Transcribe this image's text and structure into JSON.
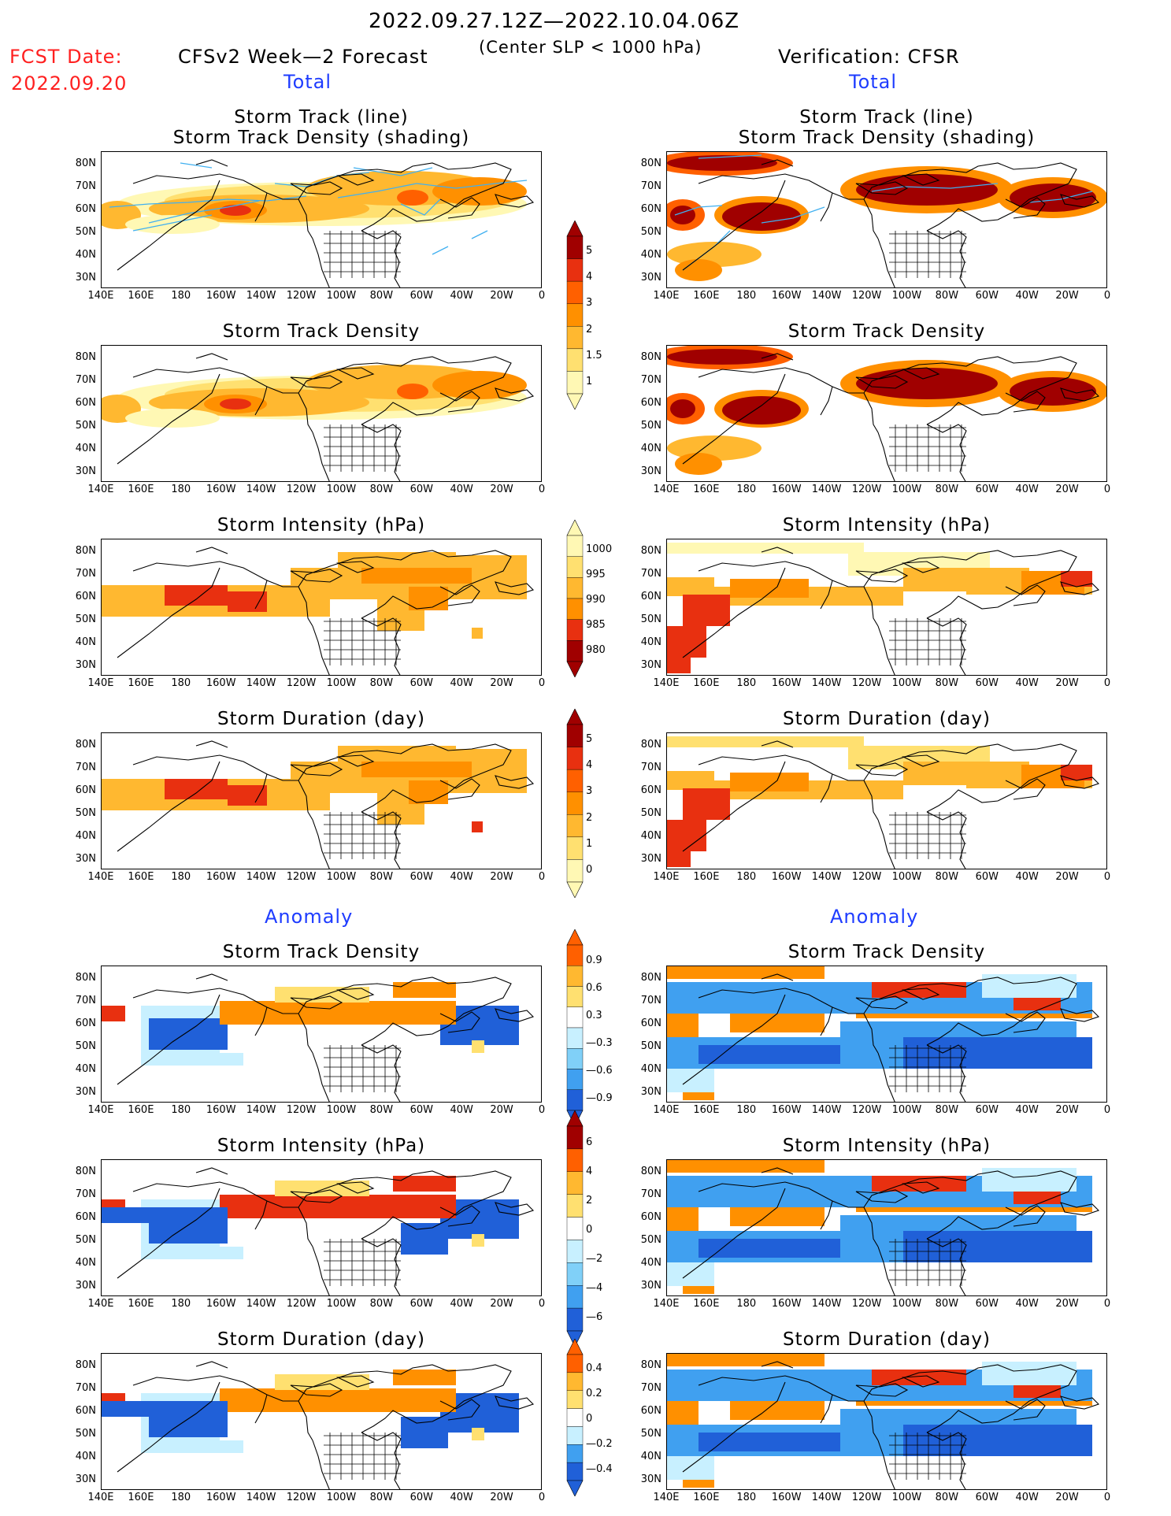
{
  "header": {
    "date_range": "2022.09.27.12Z—2022.10.04.06Z",
    "criteria": "(Center SLP < 1000 hPa)",
    "fcst_date_label": "FCST Date:",
    "fcst_date_value": "2022.09.20",
    "left_model": "CFSv2 Week—2 Forecast",
    "right_model": "Verification: CFSR"
  },
  "sections": {
    "total": "Total",
    "anomaly": "Anomaly"
  },
  "panel_titles": {
    "track_line": "Storm Track (line)",
    "track_density_shading": "Storm Track Density (shading)",
    "track_density": "Storm Track Density",
    "intensity": "Storm Intensity (hPa)",
    "duration": "Storm Duration (day)"
  },
  "axes": {
    "lat_labels": [
      "80N",
      "70N",
      "60N",
      "50N",
      "40N",
      "30N"
    ],
    "lon_labels": [
      "140E",
      "160E",
      "180",
      "160W",
      "140W",
      "120W",
      "100W",
      "80W",
      "60W",
      "40W",
      "20W",
      "0"
    ]
  },
  "colorbars": {
    "density_total": [
      "5",
      "4",
      "3",
      "2",
      "1.5",
      "1"
    ],
    "intensity_total": [
      "1000",
      "995",
      "990",
      "985",
      "980"
    ],
    "duration_total": [
      "5",
      "4",
      "3",
      "2",
      "1",
      "0"
    ],
    "density_anom": [
      "0.9",
      "0.6",
      "0.3",
      "—0.3",
      "—0.6",
      "—0.9"
    ],
    "intensity_anom": [
      "6",
      "4",
      "2",
      "0",
      "—2",
      "—4",
      "—6"
    ],
    "duration_anom": [
      "0.4",
      "0.2",
      "0",
      "—0.2",
      "—0.4"
    ]
  },
  "colors": {
    "warm": [
      "#fff8b4",
      "#ffe070",
      "#ffb830",
      "#ff9000",
      "#ff6000",
      "#e83010",
      "#a00000"
    ],
    "cool": [
      "#c8f0ff",
      "#80d0f8",
      "#40a0f0",
      "#2060d8"
    ],
    "track_line": "#40b0f0",
    "accent_red": "#ff2020",
    "accent_blue": "#1e3cff"
  }
}
